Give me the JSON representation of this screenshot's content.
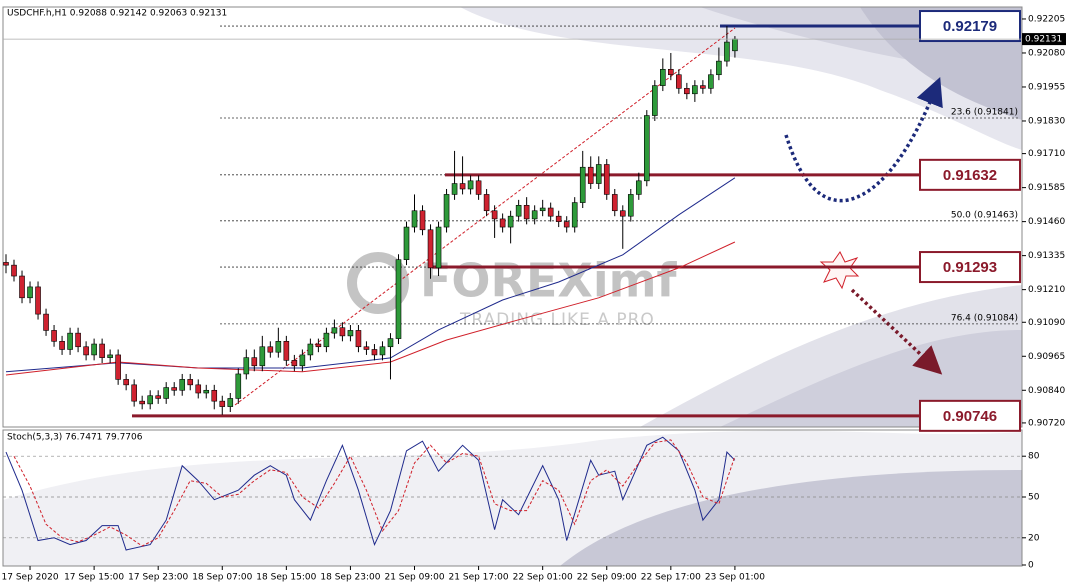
{
  "chart_data": {
    "type": "candlestick",
    "title": "USDCHF.h,H1  0.92088 0.92142 0.92063 0.92131",
    "categories": [
      null,
      null,
      null,
      "17 Sep 2020",
      null,
      null,
      null,
      null,
      null,
      null,
      null,
      "17 Sep 15:00",
      null,
      null,
      null,
      null,
      null,
      null,
      null,
      "17 Sep 23:00",
      null,
      null,
      null,
      null,
      null,
      null,
      null,
      "18 Sep 07:00",
      null,
      null,
      null,
      null,
      null,
      null,
      null,
      "18 Sep 15:00",
      null,
      null,
      null,
      null,
      null,
      null,
      null,
      "18 Sep 23:00",
      null,
      null,
      null,
      null,
      null,
      null,
      null,
      "21 Sep 09:00",
      null,
      null,
      null,
      null,
      null,
      null,
      null,
      "21 Sep 17:00",
      null,
      null,
      null,
      null,
      null,
      null,
      null,
      "22 Sep 01:00",
      null,
      null,
      null,
      null,
      null,
      null,
      null,
      "22 Sep 09:00",
      null,
      null,
      null,
      null,
      null,
      null,
      null,
      "22 Sep 17:00",
      null,
      null,
      null,
      null,
      null,
      null,
      null,
      "23 Sep 01:00"
    ],
    "open": [
      0.9131,
      0.913,
      0.9126,
      0.9118,
      0.9122,
      0.9112,
      0.9106,
      0.9102,
      0.9099,
      0.9105,
      0.91,
      0.9097,
      0.9101,
      0.9096,
      0.9097,
      0.9088,
      0.9086,
      0.908,
      0.9079,
      0.9082,
      0.9081,
      0.9085,
      0.9084,
      0.9088,
      0.9086,
      0.9083,
      0.9084,
      0.908,
      0.9078,
      0.9081,
      0.909,
      0.9096,
      0.9093,
      0.91,
      0.9098,
      0.9102,
      0.9095,
      0.9093,
      0.9097,
      0.9101,
      0.91,
      0.9105,
      0.9107,
      0.9104,
      0.9106,
      0.91,
      0.9099,
      0.9097,
      0.91,
      0.9103,
      0.9132,
      0.9144,
      0.915,
      0.9143,
      0.9129,
      0.9144,
      0.9156,
      0.916,
      0.9158,
      0.9161,
      0.9156,
      0.915,
      0.9147,
      0.9144,
      0.9148,
      0.9152,
      0.9147,
      0.915,
      0.9151,
      0.9148,
      0.9146,
      0.9144,
      0.9153,
      0.9166,
      0.916,
      0.9167,
      0.9156,
      0.915,
      0.9148,
      0.9156,
      0.9161,
      0.9185,
      0.9196,
      0.9202,
      0.92,
      0.9195,
      0.9193,
      0.9196,
      0.9195,
      0.92,
      0.9205,
      0.92088
    ],
    "high": [
      0.9134,
      0.9132,
      0.9128,
      0.9124,
      0.9124,
      0.9114,
      0.9108,
      0.9104,
      0.9107,
      0.9107,
      0.9102,
      0.9103,
      0.9103,
      0.9099,
      0.9099,
      0.909,
      0.9088,
      0.9082,
      0.9084,
      0.9084,
      0.9087,
      0.9087,
      0.909,
      0.909,
      0.9088,
      0.9086,
      0.9086,
      0.9082,
      0.9083,
      0.9092,
      0.9099,
      0.9099,
      0.9104,
      0.9102,
      0.9107,
      0.9104,
      0.9097,
      0.9099,
      0.9103,
      0.9103,
      0.9107,
      0.911,
      0.9109,
      0.9108,
      0.9108,
      0.9102,
      0.9101,
      0.9102,
      0.9105,
      0.9134,
      0.9146,
      0.9156,
      0.9152,
      0.9145,
      0.9146,
      0.9158,
      0.9172,
      0.917,
      0.9163,
      0.9163,
      0.9158,
      0.9152,
      0.9149,
      0.915,
      0.9154,
      0.9155,
      0.9152,
      0.9154,
      0.9153,
      0.915,
      0.9148,
      0.9155,
      0.9172,
      0.917,
      0.917,
      0.9169,
      0.9158,
      0.9152,
      0.9158,
      0.9164,
      0.9187,
      0.9198,
      0.9206,
      0.9208,
      0.9202,
      0.9197,
      0.9198,
      0.9198,
      0.9202,
      0.921,
      0.92179,
      0.92142
    ],
    "low": [
      0.9127,
      0.9124,
      0.9116,
      0.9116,
      0.911,
      0.9104,
      0.91,
      0.9097,
      0.9097,
      0.9098,
      0.9095,
      0.9095,
      0.9094,
      0.9094,
      0.9086,
      0.9084,
      0.9078,
      0.9077,
      0.9077,
      0.9079,
      0.9079,
      0.9082,
      0.9082,
      0.9084,
      0.9081,
      0.9081,
      0.9077,
      0.9075,
      0.9076,
      0.9079,
      0.9088,
      0.9091,
      0.9091,
      0.9096,
      0.9096,
      0.9093,
      0.9091,
      0.9091,
      0.9095,
      0.9098,
      0.9098,
      0.9103,
      0.9102,
      0.9102,
      0.9098,
      0.9097,
      0.9095,
      0.9095,
      0.9088,
      0.9101,
      0.913,
      0.9142,
      0.9141,
      0.9125,
      0.9126,
      0.9142,
      0.9154,
      0.9156,
      0.9156,
      0.9154,
      0.9148,
      0.914,
      0.9142,
      0.9138,
      0.9146,
      0.9145,
      0.9145,
      0.9148,
      0.9146,
      0.9144,
      0.9142,
      0.9142,
      0.9151,
      0.9158,
      0.9158,
      0.9154,
      0.9148,
      0.9136,
      0.9146,
      0.9154,
      0.9159,
      0.9183,
      0.9194,
      0.9198,
      0.9193,
      0.9191,
      0.919,
      0.9193,
      0.9193,
      0.9198,
      0.9203,
      0.92063
    ],
    "close": [
      0.913,
      0.9126,
      0.9118,
      0.9122,
      0.9112,
      0.9106,
      0.9102,
      0.9099,
      0.9105,
      0.91,
      0.9097,
      0.9101,
      0.9096,
      0.9097,
      0.9088,
      0.9086,
      0.908,
      0.9079,
      0.9082,
      0.9081,
      0.9085,
      0.9084,
      0.9088,
      0.9086,
      0.9083,
      0.9084,
      0.908,
      0.9078,
      0.9081,
      0.909,
      0.9096,
      0.9093,
      0.91,
      0.9098,
      0.9102,
      0.9095,
      0.9093,
      0.9097,
      0.9101,
      0.91,
      0.9105,
      0.9107,
      0.9104,
      0.9106,
      0.91,
      0.9099,
      0.9097,
      0.91,
      0.9103,
      0.9132,
      0.9144,
      0.915,
      0.9143,
      0.9129,
      0.9144,
      0.9156,
      0.916,
      0.9158,
      0.9161,
      0.9156,
      0.915,
      0.9147,
      0.9144,
      0.9148,
      0.9152,
      0.9147,
      0.915,
      0.9151,
      0.9148,
      0.9146,
      0.9144,
      0.9153,
      0.9166,
      0.916,
      0.9167,
      0.9156,
      0.915,
      0.9148,
      0.9156,
      0.9161,
      0.9185,
      0.9196,
      0.9202,
      0.92,
      0.9195,
      0.9193,
      0.9196,
      0.9195,
      0.92,
      0.9205,
      0.9212,
      0.92131
    ],
    "up_color": "#2e9a3a",
    "down_color": "#cf2230",
    "ylim": [
      0.90705,
      0.92249
    ],
    "yticks": [
      0.92205,
      {
        "value": 0.9208,
        "label": "0.92080"
      },
      0.91955,
      {
        "value": 0.9183,
        "label": "0.91830"
      },
      {
        "value": 0.9171,
        "label": "0.91710"
      },
      0.91585,
      {
        "value": 0.9146,
        "label": "0.91460"
      },
      0.91335,
      {
        "value": 0.9121,
        "label": "0.91210"
      },
      {
        "value": 0.9109,
        "label": "0.91090"
      },
      0.90965,
      {
        "value": 0.9084,
        "label": "0.90840"
      },
      {
        "value": 0.9072,
        "label": "0.90720"
      }
    ],
    "moving_averages": [
      {
        "color": "#1f2a8c",
        "x": [
          0,
          14,
          24,
          37,
          48,
          54,
          62,
          69,
          77,
          84,
          91
        ],
        "values": [
          0.90908,
          0.90941,
          0.90922,
          0.90922,
          0.90959,
          0.91062,
          0.91172,
          0.91238,
          0.91338,
          0.91485,
          0.91621
        ]
      },
      {
        "color": "#d0202a",
        "x": [
          0,
          14,
          24,
          37,
          48,
          55,
          64,
          74,
          84,
          91
        ],
        "values": [
          0.90896,
          0.90944,
          0.90922,
          0.90908,
          0.90944,
          0.91025,
          0.91099,
          0.9118,
          0.9129,
          0.91385
        ]
      }
    ],
    "levels": [
      {
        "value": 0.92179,
        "color": "#1c2a7a"
      },
      {
        "value": 0.91632,
        "color": "#8b1a2b"
      },
      {
        "value": 0.91293,
        "color": "#8b1a2b"
      },
      {
        "value": 0.90746,
        "color": "#8b1a2b"
      }
    ],
    "fibonacci": [
      {
        "value": 0.91841,
        "label": "23.6 (0.91841)"
      },
      {
        "value": 0.91463,
        "label": "50.0 (0.91463)"
      },
      {
        "value": 0.91084,
        "label": "76.4 (0.91084)"
      }
    ],
    "watermark": "FOREXimf",
    "watermark_tagline": "TRADING LIKE A PRO",
    "oscillator": {
      "title": "Stoch(5,3,3) 76.7471 79.7706",
      "ylim": [
        0,
        100
      ],
      "yticks": [
        80,
        50,
        20,
        0
      ],
      "lines": [
        {
          "color": "#1f2a8c",
          "x": [
            0,
            2,
            4,
            6,
            8,
            10,
            12,
            14,
            15,
            18,
            20,
            22,
            24,
            26,
            29,
            31,
            33,
            35,
            36,
            38,
            40,
            42,
            44,
            46,
            48,
            50,
            52,
            54,
            57,
            59,
            61,
            62,
            64,
            67,
            69,
            70,
            73,
            74,
            76,
            77,
            80,
            82,
            84,
            86,
            87,
            89,
            90,
            91
          ],
          "values": [
            83,
            55,
            18,
            20,
            15,
            18,
            29,
            29,
            11,
            15,
            33,
            73,
            62,
            48,
            55,
            66,
            73,
            66,
            48,
            33,
            62,
            88,
            55,
            15,
            40,
            84,
            91,
            69,
            88,
            77,
            26,
            48,
            37,
            73,
            48,
            18,
            77,
            66,
            69,
            48,
            88,
            94,
            84,
            55,
            33,
            48,
            83,
            77
          ]
        },
        {
          "color": "#d0202a",
          "dashed": true,
          "x": [
            1,
            3,
            5,
            7,
            9,
            11,
            13,
            15,
            17,
            19,
            21,
            23,
            25,
            27,
            29,
            31,
            33,
            35,
            37,
            39,
            41,
            43,
            45,
            47,
            49,
            51,
            53,
            55,
            57,
            59,
            61,
            63,
            65,
            67,
            69,
            71,
            73,
            75,
            77,
            79,
            81,
            83,
            85,
            87,
            89,
            91
          ],
          "values": [
            80,
            58,
            30,
            20,
            17,
            22,
            28,
            22,
            14,
            20,
            40,
            62,
            60,
            50,
            52,
            62,
            70,
            68,
            50,
            42,
            60,
            80,
            55,
            25,
            40,
            75,
            88,
            75,
            82,
            80,
            45,
            40,
            40,
            62,
            55,
            30,
            62,
            70,
            58,
            75,
            90,
            92,
            75,
            50,
            45,
            80
          ]
        }
      ]
    }
  }
}
